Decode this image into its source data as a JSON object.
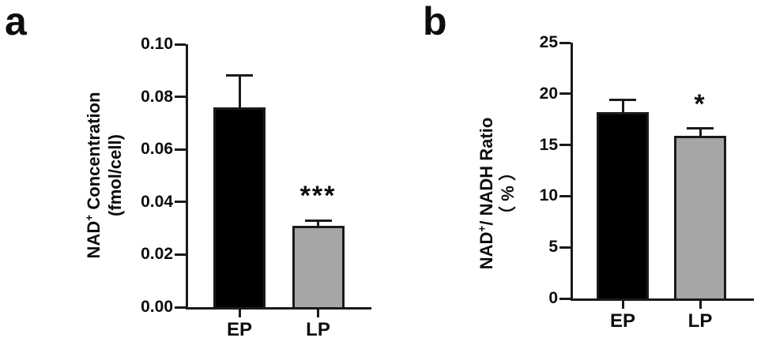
{
  "figure": {
    "background": "#ffffff",
    "panels": [
      {
        "letter": "a",
        "ylabel": {
          "prefix": "NAD",
          "sup": "+",
          "suffix": " Concentration",
          "line2": "(fmol/cell)"
        }
      },
      {
        "letter": "b",
        "ylabel": {
          "prefix": "NAD",
          "sup": "+",
          "suffix": "/ NADH Ratio",
          "line2": "（ % ）"
        }
      }
    ]
  },
  "colors": {
    "bar_ep": "#000000",
    "bar_lp": "#A6A6A6",
    "axis": "#1a1a1a",
    "text": "#0d0d0d"
  },
  "chart_data": [
    {
      "type": "bar",
      "panel": "a",
      "title": "",
      "xlabel": "",
      "ylabel": "NAD+ Concentration (fmol/cell)",
      "categories": [
        "EP",
        "LP"
      ],
      "values": [
        0.076,
        0.031
      ],
      "errors_upper": [
        0.012,
        0.002
      ],
      "bar_colors": [
        "#000000",
        "#A6A6A6"
      ],
      "significance": [
        "",
        "***"
      ],
      "ylim": [
        0,
        0.1
      ],
      "yticks": [
        0,
        0.02,
        0.04,
        0.06,
        0.08,
        0.1
      ],
      "ytick_labels": [
        "0.00",
        "0.02",
        "0.04",
        "0.06",
        "0.08",
        "0.10"
      ],
      "legend": null,
      "grid": false
    },
    {
      "type": "bar",
      "panel": "b",
      "title": "",
      "xlabel": "",
      "ylabel": "NAD+/ NADH Ratio （%）",
      "categories": [
        "EP",
        "LP"
      ],
      "values": [
        18.2,
        15.9
      ],
      "errors_upper": [
        1.2,
        0.7
      ],
      "bar_colors": [
        "#000000",
        "#A6A6A6"
      ],
      "significance": [
        "",
        "*"
      ],
      "ylim": [
        0,
        25
      ],
      "yticks": [
        0,
        5,
        10,
        15,
        20,
        25
      ],
      "ytick_labels": [
        "0",
        "5",
        "10",
        "15",
        "20",
        "25"
      ],
      "legend": null,
      "grid": false
    }
  ]
}
